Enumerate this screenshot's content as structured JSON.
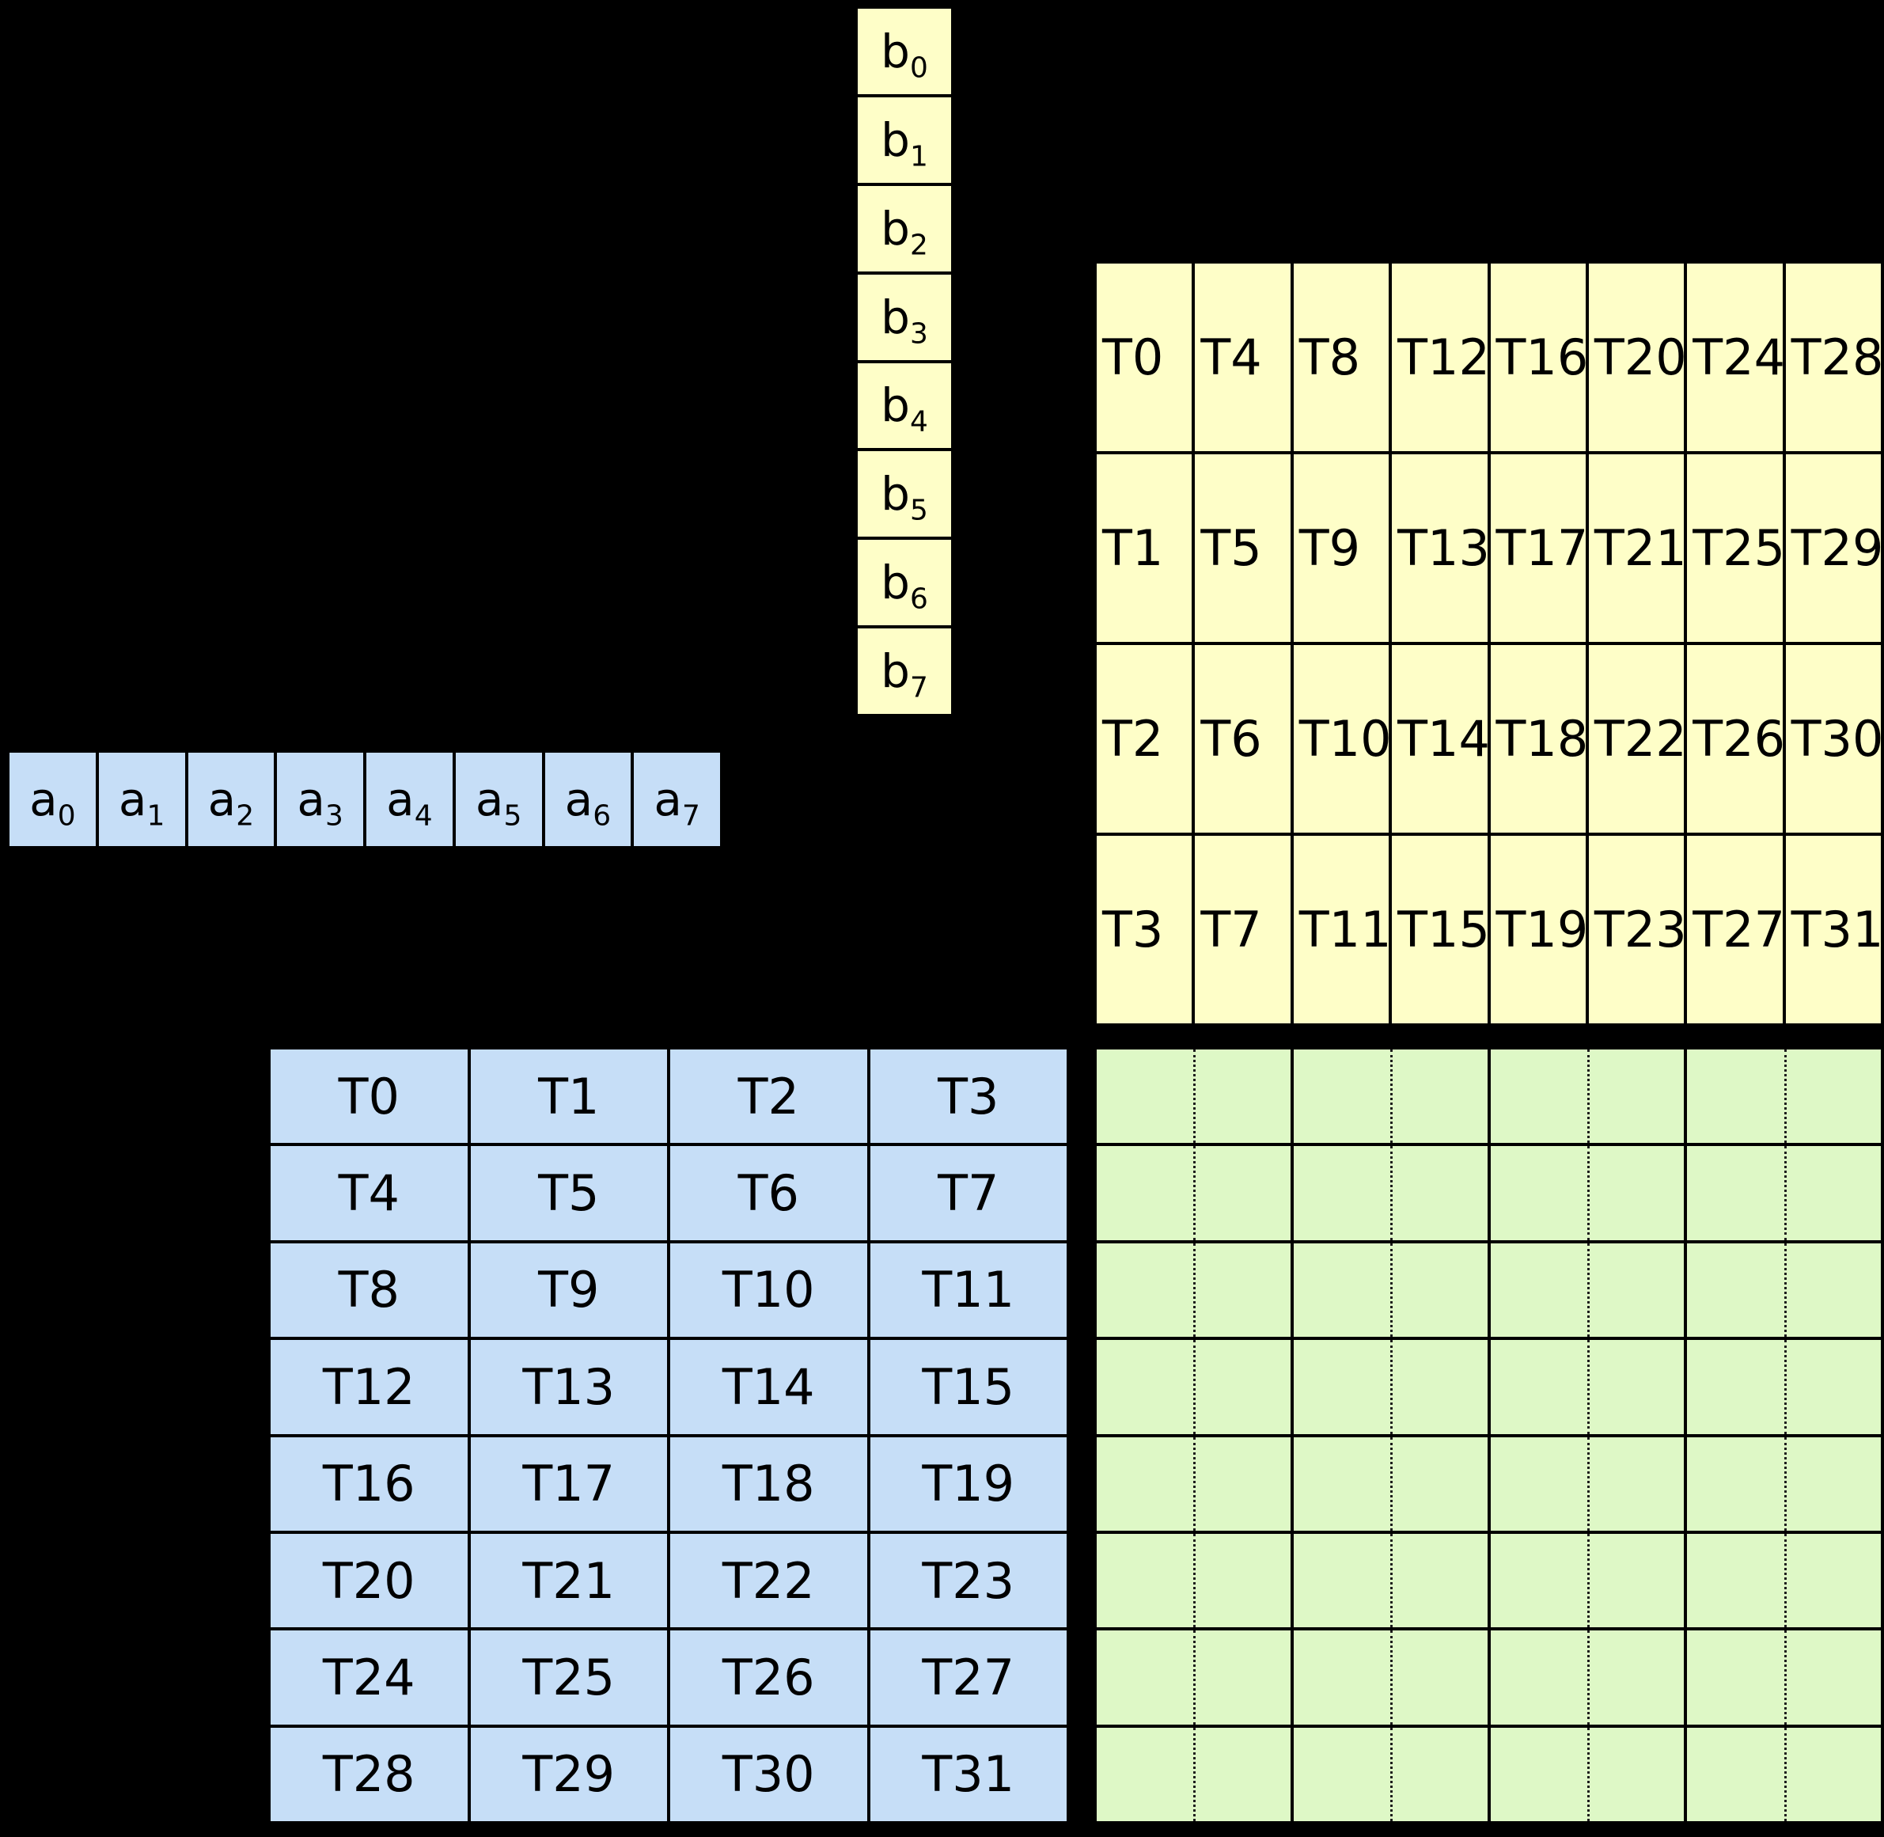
{
  "title": "warp thread to fragment mapping diagram",
  "colors": {
    "background": "#000000",
    "border": "#000000",
    "text": "#000000",
    "a_fill_blue": "#C6DEF7",
    "b_fill_yellow": "#FEFEC8",
    "c_fill_green": "#DEF8C6"
  },
  "b_vector": {
    "orientation": "vertical",
    "cells": [
      {
        "base": "b",
        "sub": "0"
      },
      {
        "base": "b",
        "sub": "1"
      },
      {
        "base": "b",
        "sub": "2"
      },
      {
        "base": "b",
        "sub": "3"
      },
      {
        "base": "b",
        "sub": "4"
      },
      {
        "base": "b",
        "sub": "5"
      },
      {
        "base": "b",
        "sub": "6"
      },
      {
        "base": "b",
        "sub": "7"
      }
    ]
  },
  "a_vector": {
    "orientation": "horizontal",
    "cells": [
      {
        "base": "a",
        "sub": "0"
      },
      {
        "base": "a",
        "sub": "1"
      },
      {
        "base": "a",
        "sub": "2"
      },
      {
        "base": "a",
        "sub": "3"
      },
      {
        "base": "a",
        "sub": "4"
      },
      {
        "base": "a",
        "sub": "5"
      },
      {
        "base": "a",
        "sub": "6"
      },
      {
        "base": "a",
        "sub": "7"
      }
    ]
  },
  "b_thread_grid": {
    "rows": [
      [
        "T0",
        "T4",
        "T8",
        "T12",
        "T16",
        "T20",
        "T24",
        "T28"
      ],
      [
        "T1",
        "T5",
        "T9",
        "T13",
        "T17",
        "T21",
        "T25",
        "T29"
      ],
      [
        "T2",
        "T6",
        "T10",
        "T14",
        "T18",
        "T22",
        "T26",
        "T30"
      ],
      [
        "T3",
        "T7",
        "T11",
        "T15",
        "T19",
        "T23",
        "T27",
        "T31"
      ]
    ]
  },
  "a_thread_grid": {
    "rows": [
      [
        "T0",
        "T1",
        "T2",
        "T3"
      ],
      [
        "T4",
        "T5",
        "T6",
        "T7"
      ],
      [
        "T8",
        "T9",
        "T10",
        "T11"
      ],
      [
        "T12",
        "T13",
        "T14",
        "T15"
      ],
      [
        "T16",
        "T17",
        "T18",
        "T19"
      ],
      [
        "T20",
        "T21",
        "T22",
        "T23"
      ],
      [
        "T24",
        "T25",
        "T26",
        "T27"
      ],
      [
        "T28",
        "T29",
        "T30",
        "T31"
      ]
    ]
  },
  "c_grid": {
    "rows": 8,
    "major_cols": 4,
    "dotted_subdivisions_per_major_col": 2,
    "cells_empty": true
  }
}
